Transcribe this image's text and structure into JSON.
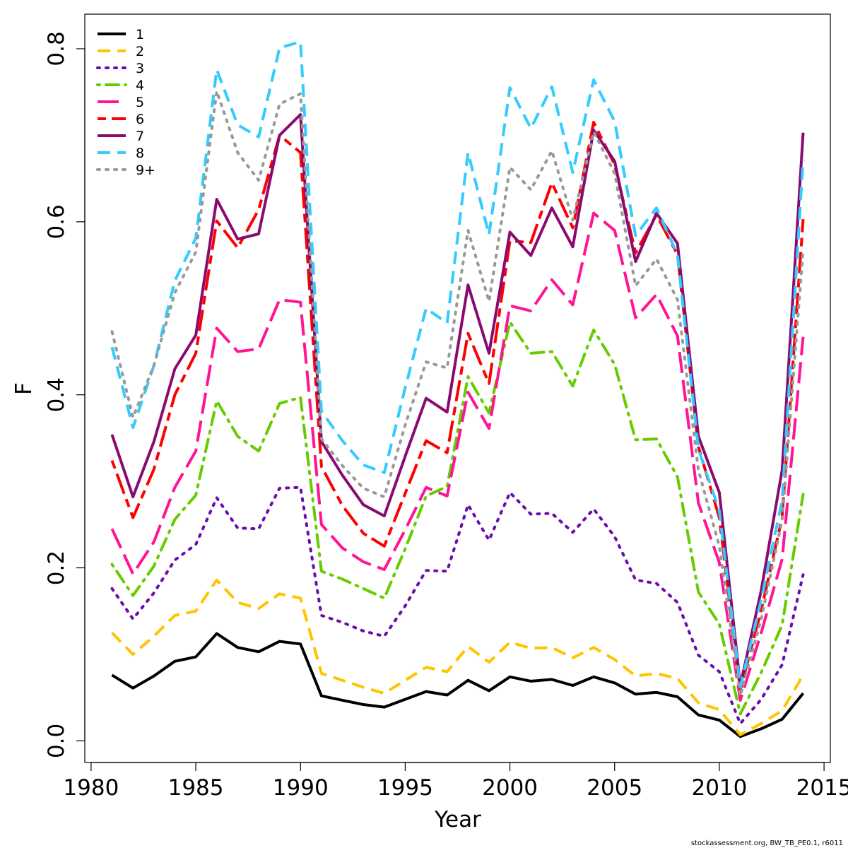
{
  "chart_data": {
    "type": "line",
    "xlabel": "Year",
    "ylabel": "F",
    "xlim": [
      1979.7,
      2015.3
    ],
    "ylim": [
      -0.025,
      0.84
    ],
    "xticks": [
      1980,
      1985,
      1990,
      1995,
      2000,
      2005,
      2010,
      2015
    ],
    "yticks": [
      0.0,
      0.2,
      0.4,
      0.6,
      0.8
    ],
    "ytick_labels": [
      "0.0",
      "0.2",
      "0.4",
      "0.6",
      "0.8"
    ],
    "legend_position": "top-left",
    "grid": false,
    "x": [
      1981,
      1982,
      1983,
      1984,
      1985,
      1986,
      1987,
      1988,
      1989,
      1990,
      1991,
      1992,
      1993,
      1994,
      1995,
      1996,
      1997,
      1998,
      1999,
      2000,
      2001,
      2002,
      2003,
      2004,
      2005,
      2006,
      2007,
      2008,
      2009,
      2010,
      2011,
      2012,
      2013,
      2014
    ],
    "series": [
      {
        "name": "1",
        "color": "#000000",
        "dash": "solid",
        "values": [
          0.076,
          0.061,
          0.075,
          0.092,
          0.097,
          0.124,
          0.108,
          0.103,
          0.115,
          0.112,
          0.052,
          0.047,
          0.042,
          0.039,
          0.048,
          0.057,
          0.053,
          0.07,
          0.058,
          0.074,
          0.069,
          0.071,
          0.064,
          0.074,
          0.067,
          0.054,
          0.056,
          0.051,
          0.03,
          0.024,
          0.005,
          0.014,
          0.025,
          0.055
        ]
      },
      {
        "name": "2",
        "color": "#FFC400",
        "dash": "dashed",
        "values": [
          0.125,
          0.1,
          0.121,
          0.145,
          0.15,
          0.186,
          0.16,
          0.153,
          0.17,
          0.165,
          0.078,
          0.07,
          0.062,
          0.055,
          0.07,
          0.085,
          0.08,
          0.109,
          0.091,
          0.114,
          0.107,
          0.108,
          0.096,
          0.108,
          0.094,
          0.075,
          0.078,
          0.072,
          0.044,
          0.036,
          0.007,
          0.02,
          0.035,
          0.076
        ]
      },
      {
        "name": "3",
        "color": "#6A0DAD",
        "dash": "dotted",
        "values": [
          0.176,
          0.141,
          0.171,
          0.209,
          0.227,
          0.281,
          0.246,
          0.245,
          0.292,
          0.293,
          0.145,
          0.137,
          0.127,
          0.121,
          0.156,
          0.197,
          0.196,
          0.273,
          0.232,
          0.287,
          0.262,
          0.263,
          0.241,
          0.268,
          0.236,
          0.186,
          0.182,
          0.16,
          0.099,
          0.08,
          0.02,
          0.048,
          0.088,
          0.192
        ]
      },
      {
        "name": "4",
        "color": "#66CC00",
        "dash": "dashdot",
        "values": [
          0.204,
          0.168,
          0.202,
          0.256,
          0.284,
          0.393,
          0.352,
          0.335,
          0.39,
          0.397,
          0.196,
          0.187,
          0.176,
          0.165,
          0.222,
          0.283,
          0.294,
          0.421,
          0.379,
          0.484,
          0.448,
          0.45,
          0.41,
          0.475,
          0.435,
          0.348,
          0.349,
          0.305,
          0.172,
          0.135,
          0.031,
          0.079,
          0.134,
          0.285
        ]
      },
      {
        "name": "5",
        "color": "#FF1493",
        "dash": "longdash",
        "values": [
          0.245,
          0.193,
          0.23,
          0.293,
          0.335,
          0.477,
          0.45,
          0.453,
          0.51,
          0.507,
          0.25,
          0.223,
          0.207,
          0.198,
          0.244,
          0.293,
          0.283,
          0.403,
          0.361,
          0.503,
          0.497,
          0.533,
          0.504,
          0.61,
          0.59,
          0.489,
          0.516,
          0.468,
          0.275,
          0.206,
          0.047,
          0.125,
          0.21,
          0.467
        ]
      },
      {
        "name": "6",
        "color": "#FF0000",
        "dash": "twodash",
        "values": [
          0.324,
          0.258,
          0.314,
          0.4,
          0.448,
          0.601,
          0.57,
          0.614,
          0.7,
          0.68,
          0.317,
          0.272,
          0.24,
          0.225,
          0.286,
          0.347,
          0.333,
          0.471,
          0.413,
          0.578,
          0.576,
          0.645,
          0.593,
          0.715,
          0.666,
          0.564,
          0.608,
          0.562,
          0.34,
          0.258,
          0.059,
          0.151,
          0.258,
          0.603
        ]
      },
      {
        "name": "7",
        "color": "#8B0A70",
        "dash": "solid",
        "values": [
          0.354,
          0.282,
          0.346,
          0.43,
          0.469,
          0.626,
          0.58,
          0.586,
          0.7,
          0.724,
          0.346,
          0.307,
          0.273,
          0.26,
          0.329,
          0.396,
          0.38,
          0.527,
          0.448,
          0.588,
          0.561,
          0.616,
          0.571,
          0.706,
          0.67,
          0.554,
          0.61,
          0.575,
          0.352,
          0.287,
          0.064,
          0.174,
          0.313,
          0.703
        ]
      },
      {
        "name": "8",
        "color": "#33CCFF",
        "dash": "dashed",
        "values": [
          0.455,
          0.362,
          0.434,
          0.532,
          0.581,
          0.776,
          0.712,
          0.698,
          0.801,
          0.808,
          0.381,
          0.347,
          0.319,
          0.31,
          0.408,
          0.5,
          0.483,
          0.68,
          0.585,
          0.755,
          0.708,
          0.756,
          0.657,
          0.764,
          0.716,
          0.584,
          0.616,
          0.562,
          0.337,
          0.266,
          0.062,
          0.163,
          0.278,
          0.672
        ]
      },
      {
        "name": "9+",
        "color": "#999999",
        "dash": "dotted",
        "values": [
          0.473,
          0.374,
          0.434,
          0.518,
          0.565,
          0.751,
          0.68,
          0.648,
          0.736,
          0.748,
          0.349,
          0.318,
          0.292,
          0.282,
          0.365,
          0.438,
          0.431,
          0.59,
          0.508,
          0.663,
          0.637,
          0.682,
          0.602,
          0.704,
          0.656,
          0.526,
          0.557,
          0.51,
          0.313,
          0.225,
          0.052,
          0.141,
          0.255,
          0.567
        ]
      }
    ]
  },
  "footer": "stockassessment.org, BW_TB_PE0.1, r6011"
}
